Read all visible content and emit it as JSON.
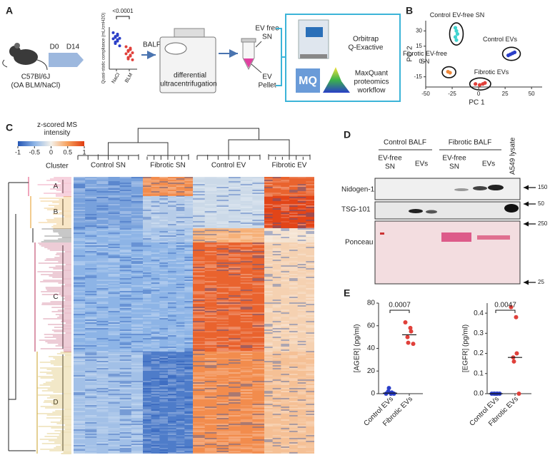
{
  "figure": {
    "panel_labels": [
      "A",
      "B",
      "C",
      "D",
      "E"
    ],
    "workflow": {
      "strain": "C57Bl/6J",
      "treatment": "(OA BLM/NaCl)",
      "day_start": "D0",
      "day_end": "D14",
      "sample": "BALF",
      "centrifugation": [
        "differential",
        "ultracentrifugation"
      ],
      "supernatant": [
        "EV free",
        "SN"
      ],
      "pellet": [
        "EV",
        "Pellet"
      ],
      "instrument": [
        "Orbitrap",
        "Q-Exactive"
      ],
      "software_logo": "MQ",
      "software": [
        "MaxQuant",
        "proteomics",
        "workflow"
      ]
    },
    "western_blot": {
      "groups": [
        "Control BALF",
        "Fibrotic BALF"
      ],
      "lanes": [
        [
          "EV-free",
          "SN"
        ],
        [
          "EVs"
        ],
        [
          "EV-free",
          "SN"
        ],
        [
          "EVs"
        ],
        [
          "A549 lysate"
        ]
      ],
      "rows": [
        "Nidogen-1",
        "TSG-101",
        "Ponceau"
      ],
      "markers": [
        150,
        50,
        250,
        25
      ]
    }
  },
  "chart_data": [
    {
      "type": "scatter",
      "xlabel": "PC 1",
      "ylabel": "PC 2",
      "xlim": [
        -50,
        60
      ],
      "ylim": [
        -25,
        40
      ],
      "xticks": [
        -50,
        -25,
        0,
        25,
        50
      ],
      "yticks": [
        -15,
        0,
        15,
        30
      ],
      "series": [
        {
          "name": "Control EV-free SN",
          "color": "#3fd3d0",
          "x": [
            -22,
            -21,
            -20,
            -22,
            -21
          ],
          "values": [
            33,
            30,
            27,
            24,
            21
          ]
        },
        {
          "name": "Fibrotic EV-free SN",
          "color": "#f0883a",
          "x": [
            -29,
            -27
          ],
          "values": [
            -10,
            -11
          ]
        },
        {
          "name": "Control EVs",
          "color": "#2a3ec8",
          "x": [
            28,
            30,
            32,
            34
          ],
          "values": [
            6,
            7,
            8,
            9
          ]
        },
        {
          "name": "Fibrotic EVs",
          "color": "#e0403a",
          "x": [
            -3,
            1,
            4,
            6
          ],
          "values": [
            -22,
            -23,
            -22,
            -21
          ]
        }
      ]
    },
    {
      "type": "strip",
      "ylabel": "Quasi-static compliance (mL/cmH2O)",
      "annotation": "<0.0001",
      "categories": [
        "NaCl",
        "BLM"
      ],
      "colors": [
        "#2a3ec8",
        "#e0403a"
      ],
      "ylim": [
        0,
        0.09
      ],
      "values": [
        [
          0.078,
          0.075,
          0.072,
          0.07,
          0.068,
          0.066,
          0.065,
          0.063,
          0.06,
          0.058,
          0.055,
          0.05
        ],
        [
          0.048,
          0.045,
          0.042,
          0.04,
          0.038,
          0.035,
          0.033,
          0.03,
          0.028,
          0.025,
          0.022,
          0.02
        ]
      ]
    },
    {
      "type": "strip",
      "ylabel": "[AGER] (pg/ml)",
      "annotation": "0.0007",
      "categories": [
        "Control EVs",
        "Fibrotic EVs"
      ],
      "colors": [
        "#2a3ec8",
        "#e0403a"
      ],
      "ylim": [
        0,
        80
      ],
      "yticks": [
        0,
        20,
        40,
        60,
        80
      ],
      "values": [
        [
          0,
          0,
          1,
          2,
          5,
          0
        ],
        [
          63,
          58,
          55,
          50,
          45,
          44
        ]
      ],
      "medians": [
        0.5,
        52
      ]
    },
    {
      "type": "strip",
      "ylabel": "[EGFR] (pg/ml)",
      "annotation": "0.0047",
      "categories": [
        "Control EVs",
        "Fibrotic EVs"
      ],
      "colors": [
        "#2a3ec8",
        "#e0403a"
      ],
      "ylim": [
        0,
        0.45
      ],
      "yticks": [
        {
          "value": 0,
          "label": "0.0"
        },
        0.1,
        0.2,
        0.3,
        0.4
      ],
      "values": [
        [
          0,
          0,
          0,
          0,
          0,
          0
        ],
        [
          0.43,
          0.38,
          0.2,
          0.18,
          0.16,
          0
        ]
      ],
      "medians": [
        0,
        0.18
      ]
    },
    {
      "type": "heatmap",
      "colorbar": {
        "title": "z-scored MS intensity",
        "range": [
          -1,
          1
        ],
        "ticks": [
          -1,
          -0.5,
          0,
          0.5,
          1
        ]
      },
      "row_title": "Cluster",
      "rows": [
        "A",
        "B",
        null,
        "C",
        "D"
      ],
      "columns": [
        "Control SN",
        "Fibrotic SN",
        "Control EV",
        "Fibrotic EV"
      ],
      "values": [
        [
          -0.6,
          0.6,
          -0.2,
          0.8
        ],
        [
          -0.6,
          -0.3,
          -0.2,
          0.95
        ],
        [
          -0.5,
          -0.4,
          0.4,
          0.1
        ],
        [
          -0.5,
          -0.5,
          0.8,
          0.2
        ],
        [
          -0.4,
          -0.8,
          0.6,
          0.3
        ]
      ]
    }
  ]
}
